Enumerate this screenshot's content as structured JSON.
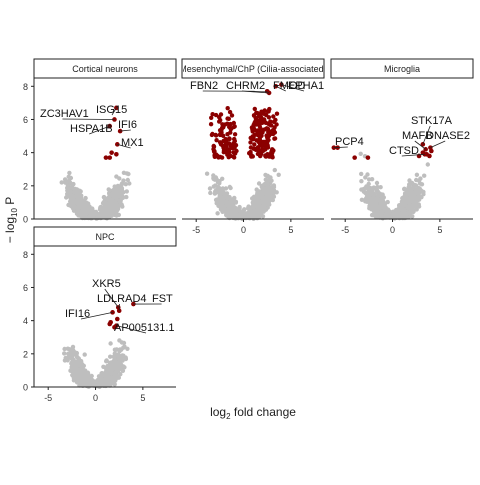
{
  "chart_data": {
    "type": "scatter",
    "xlabel_main": "log",
    "xlabel_sub": "2",
    "xlabel_rest": " fold change",
    "ylabel_main": "− log",
    "ylabel_sub": "10",
    "ylabel_rest": " P",
    "xlim": [
      -6.5,
      8.5
    ],
    "ylim": [
      0,
      8.5
    ],
    "x_ticks": [
      "-5",
      "0",
      "5"
    ],
    "x_tick_values": [
      -5,
      0,
      5
    ],
    "y_ticks": [
      "0",
      "2",
      "4",
      "6",
      "8"
    ],
    "y_tick_values": [
      0,
      2,
      4,
      6,
      8
    ],
    "colors": {
      "sig": "#8b0000",
      "nonsig": "#bebebe"
    },
    "panels": [
      {
        "title": "Cortical neurons",
        "cloud": {
          "width": 2.1,
          "max_y": 3.7
        },
        "labels": [
          {
            "text": "ZC3HAV1",
            "x": 2.0,
            "y": 6.0
          },
          {
            "text": "ISG15",
            "x": 2.2,
            "y": 6.7
          },
          {
            "text": "HSPA1B",
            "x": 1.5,
            "y": 5.6
          },
          {
            "text": "IFI6",
            "x": 2.6,
            "y": 5.3
          },
          {
            "text": "MX1",
            "x": 2.3,
            "y": 4.5
          }
        ],
        "sig_points": [
          {
            "x": 1.1,
            "y": 3.7
          },
          {
            "x": 1.7,
            "y": 4.0
          },
          {
            "x": 2.2,
            "y": 3.9
          },
          {
            "x": 1.5,
            "y": 3.7
          }
        ]
      },
      {
        "title": "Mesenchymal/ChP (Cilia-associated)",
        "cloud": {
          "width": 2.1,
          "max_y": 4.0
        },
        "labels": [
          {
            "text": "FBN2",
            "x": 2.5,
            "y": 7.7
          },
          {
            "text": "CHRM2",
            "x": 2.7,
            "y": 7.6
          },
          {
            "text": "FMOD",
            "x": 3.4,
            "y": 8.0
          },
          {
            "text": "EPHA1",
            "x": 4.0,
            "y": 8.1
          },
          {
            "text": "",
            "x": 0,
            "y": 0
          }
        ],
        "sig_points": []
      },
      {
        "title": "Microglia",
        "cloud": {
          "width": 2.0,
          "max_y": 3.6
        },
        "labels": [
          {
            "text": "STK17A",
            "x": 3.2,
            "y": 4.5
          },
          {
            "text": "MAFB",
            "x": 3.5,
            "y": 4.2
          },
          {
            "text": "DNASE2",
            "x": 4.0,
            "y": 4.3
          },
          {
            "text": "CTSD",
            "x": 3.4,
            "y": 3.9
          },
          {
            "text": "PCP4",
            "x": -6.2,
            "y": 4.3
          }
        ],
        "sig_points": [
          {
            "x": -5.8,
            "y": 4.3
          },
          {
            "x": -4.0,
            "y": 3.7
          },
          {
            "x": -2.6,
            "y": 3.7
          },
          {
            "x": 2.8,
            "y": 3.8
          },
          {
            "x": 3.2,
            "y": 4.0
          },
          {
            "x": 3.6,
            "y": 3.9
          },
          {
            "x": 4.1,
            "y": 4.1
          },
          {
            "x": 3.9,
            "y": 3.8
          }
        ]
      },
      {
        "title": "NPC",
        "cloud": {
          "width": 2.0,
          "max_y": 3.6
        },
        "labels": [
          {
            "text": "XKR5",
            "x": 2.4,
            "y": 4.8
          },
          {
            "text": "LDLRAD4",
            "x": 2.5,
            "y": 4.6
          },
          {
            "text": "FST",
            "x": 4.0,
            "y": 5.0
          },
          {
            "text": "IFI16",
            "x": 1.8,
            "y": 4.5
          },
          {
            "text": "AP005131.1",
            "x": 2.2,
            "y": 3.7
          }
        ],
        "sig_points": [
          {
            "x": 1.5,
            "y": 3.8
          },
          {
            "x": 1.6,
            "y": 3.9
          },
          {
            "x": 2.0,
            "y": 3.6
          },
          {
            "x": 2.3,
            "y": 4.1
          }
        ]
      }
    ]
  }
}
